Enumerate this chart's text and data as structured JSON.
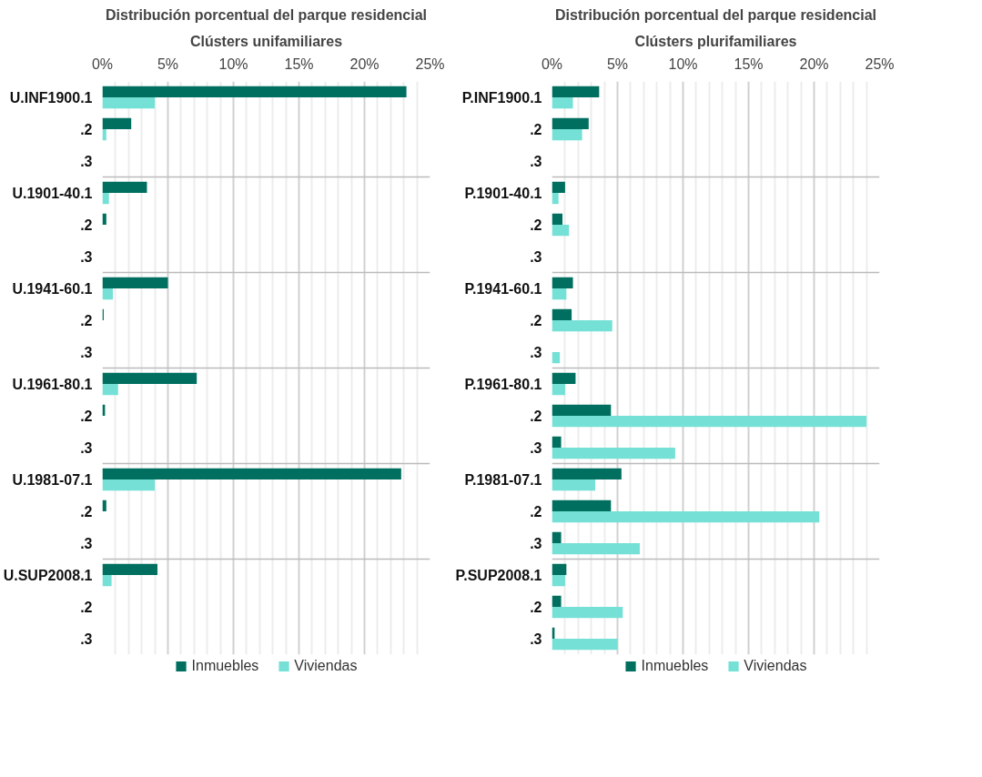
{
  "chart_data": [
    {
      "type": "bar",
      "orientation": "horizontal",
      "title": "Distribución porcentual del parque residencial",
      "subtitle": "Clústers unifamiliares",
      "categories": [
        "U.INF1900.1",
        ".2",
        ".3",
        "U.1901-40.1",
        ".2",
        ".3",
        "U.1941-60.1",
        ".2",
        ".3",
        "U.1961-80.1",
        ".2",
        ".3",
        "U.1981-07.1",
        ".2",
        ".3",
        "U.SUP2008.1",
        ".2",
        ".3"
      ],
      "series": [
        {
          "name": "Inmuebles",
          "color": "#006f5f",
          "values": [
            23.2,
            2.2,
            0,
            3.4,
            0.3,
            0,
            5.0,
            0.1,
            0,
            7.2,
            0.2,
            0,
            22.8,
            0.3,
            0,
            4.2,
            0,
            0
          ]
        },
        {
          "name": "Viviendas",
          "color": "#74e0d6",
          "values": [
            4.0,
            0.3,
            0,
            0.5,
            0,
            0,
            0.8,
            0,
            0,
            1.2,
            0,
            0,
            4.0,
            0,
            0,
            0.7,
            0,
            0
          ]
        }
      ],
      "xlim": [
        0,
        25
      ],
      "xticks": [
        {
          "value": 0,
          "label": "0%"
        },
        {
          "value": 1,
          "label": null
        },
        {
          "value": 2,
          "label": null
        },
        {
          "value": 3,
          "label": null
        },
        {
          "value": 4,
          "label": null
        },
        {
          "value": 5,
          "label": "5%"
        },
        {
          "value": 6,
          "label": null
        },
        {
          "value": 7,
          "label": null
        },
        {
          "value": 8,
          "label": null
        },
        {
          "value": 9,
          "label": null
        },
        {
          "value": 10,
          "label": "10%"
        },
        {
          "value": 11,
          "label": null
        },
        {
          "value": 12,
          "label": null
        },
        {
          "value": 13,
          "label": null
        },
        {
          "value": 14,
          "label": null
        },
        {
          "value": 15,
          "label": "15%"
        },
        {
          "value": 16,
          "label": null
        },
        {
          "value": 17,
          "label": null
        },
        {
          "value": 18,
          "label": null
        },
        {
          "value": 19,
          "label": null
        },
        {
          "value": 20,
          "label": "20%"
        },
        {
          "value": 21,
          "label": null
        },
        {
          "value": 22,
          "label": null
        },
        {
          "value": 23,
          "label": null
        },
        {
          "value": 24,
          "label": null
        },
        {
          "value": 25,
          "label": "25%"
        }
      ],
      "grid": "x",
      "legend": "bottom"
    },
    {
      "type": "bar",
      "orientation": "horizontal",
      "title": "Distribución porcentual del parque residencial",
      "subtitle": "Clústers plurifamiliares",
      "categories": [
        "P.INF1900.1",
        ".2",
        ".3",
        "P.1901-40.1",
        ".2",
        ".3",
        "P.1941-60.1",
        ".2",
        ".3",
        "P.1961-80.1",
        ".2",
        ".3",
        "P.1981-07.1",
        ".2",
        ".3",
        "P.SUP2008.1",
        ".2",
        ".3"
      ],
      "series": [
        {
          "name": "Inmuebles",
          "color": "#006f5f",
          "values": [
            3.6,
            2.8,
            0,
            1.0,
            0.8,
            0,
            1.6,
            1.5,
            0,
            1.8,
            4.5,
            0.7,
            5.3,
            4.5,
            0.7,
            1.1,
            0.7,
            0.2
          ]
        },
        {
          "name": "Viviendas",
          "color": "#74e0d6",
          "values": [
            1.6,
            2.3,
            0,
            0.5,
            1.3,
            0,
            1.1,
            4.6,
            0.6,
            1.0,
            24.0,
            9.4,
            3.3,
            20.4,
            6.7,
            1.0,
            5.4,
            5.0
          ]
        }
      ],
      "xlim": [
        0,
        25
      ],
      "xticks": [
        {
          "value": 0,
          "label": "0%"
        },
        {
          "value": 1,
          "label": null
        },
        {
          "value": 2,
          "label": null
        },
        {
          "value": 3,
          "label": null
        },
        {
          "value": 4,
          "label": null
        },
        {
          "value": 5,
          "label": "5%"
        },
        {
          "value": 6,
          "label": null
        },
        {
          "value": 7,
          "label": null
        },
        {
          "value": 8,
          "label": null
        },
        {
          "value": 9,
          "label": null
        },
        {
          "value": 10,
          "label": "10%"
        },
        {
          "value": 11,
          "label": null
        },
        {
          "value": 12,
          "label": null
        },
        {
          "value": 13,
          "label": null
        },
        {
          "value": 14,
          "label": null
        },
        {
          "value": 15,
          "label": "15%"
        },
        {
          "value": 16,
          "label": null
        },
        {
          "value": 17,
          "label": null
        },
        {
          "value": 18,
          "label": null
        },
        {
          "value": 19,
          "label": null
        },
        {
          "value": 20,
          "label": "20%"
        },
        {
          "value": 21,
          "label": null
        },
        {
          "value": 22,
          "label": null
        },
        {
          "value": 23,
          "label": null
        },
        {
          "value": 24,
          "label": null
        },
        {
          "value": 25,
          "label": "25%"
        }
      ],
      "grid": "x",
      "legend": "bottom"
    }
  ]
}
